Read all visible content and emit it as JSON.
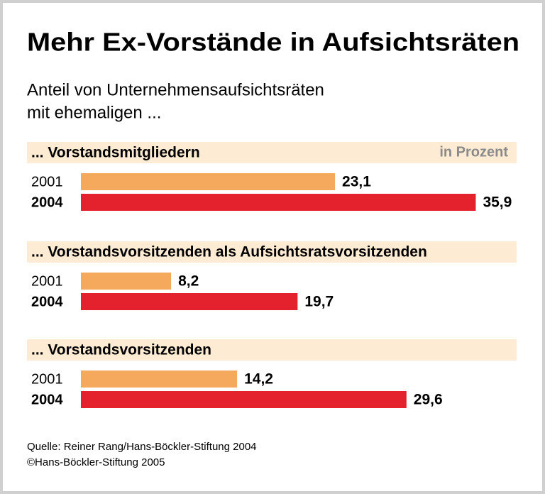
{
  "header": {
    "title": "Mehr Ex-Vorstände in Aufsichtsräten",
    "subtitle": [
      "Anteil von Unternehmensaufsichtsräten",
      "mit ehemaligen ..."
    ],
    "unit": "in Prozent"
  },
  "chart_data": [
    {
      "type": "bar",
      "orientation": "horizontal",
      "title": "... Vorstandsmitgliedern",
      "categories": [
        "2001",
        "2004"
      ],
      "values": [
        23.1,
        35.9
      ],
      "value_labels": [
        "23,1",
        "35,9"
      ],
      "colors": [
        "#f4a95c",
        "#e3222e"
      ]
    },
    {
      "type": "bar",
      "orientation": "horizontal",
      "title": "... Vorstandsvorsitzenden als Aufsichtsratsvorsitzenden",
      "categories": [
        "2001",
        "2004"
      ],
      "values": [
        8.2,
        19.7
      ],
      "value_labels": [
        "8,2",
        "19,7"
      ],
      "colors": [
        "#f4a95c",
        "#e3222e"
      ]
    },
    {
      "type": "bar",
      "orientation": "horizontal",
      "title": "... Vorstandsvorsitzenden",
      "categories": [
        "2001",
        "2004"
      ],
      "values": [
        14.2,
        29.6
      ],
      "value_labels": [
        "14,2",
        "29,6"
      ],
      "colors": [
        "#f4a95c",
        "#e3222e"
      ]
    }
  ],
  "footer": {
    "source": "Quelle: Reiner Rang/Hans-Böckler-Stiftung 2004",
    "copyright": "©Hans-Böckler-Stiftung 2005"
  }
}
